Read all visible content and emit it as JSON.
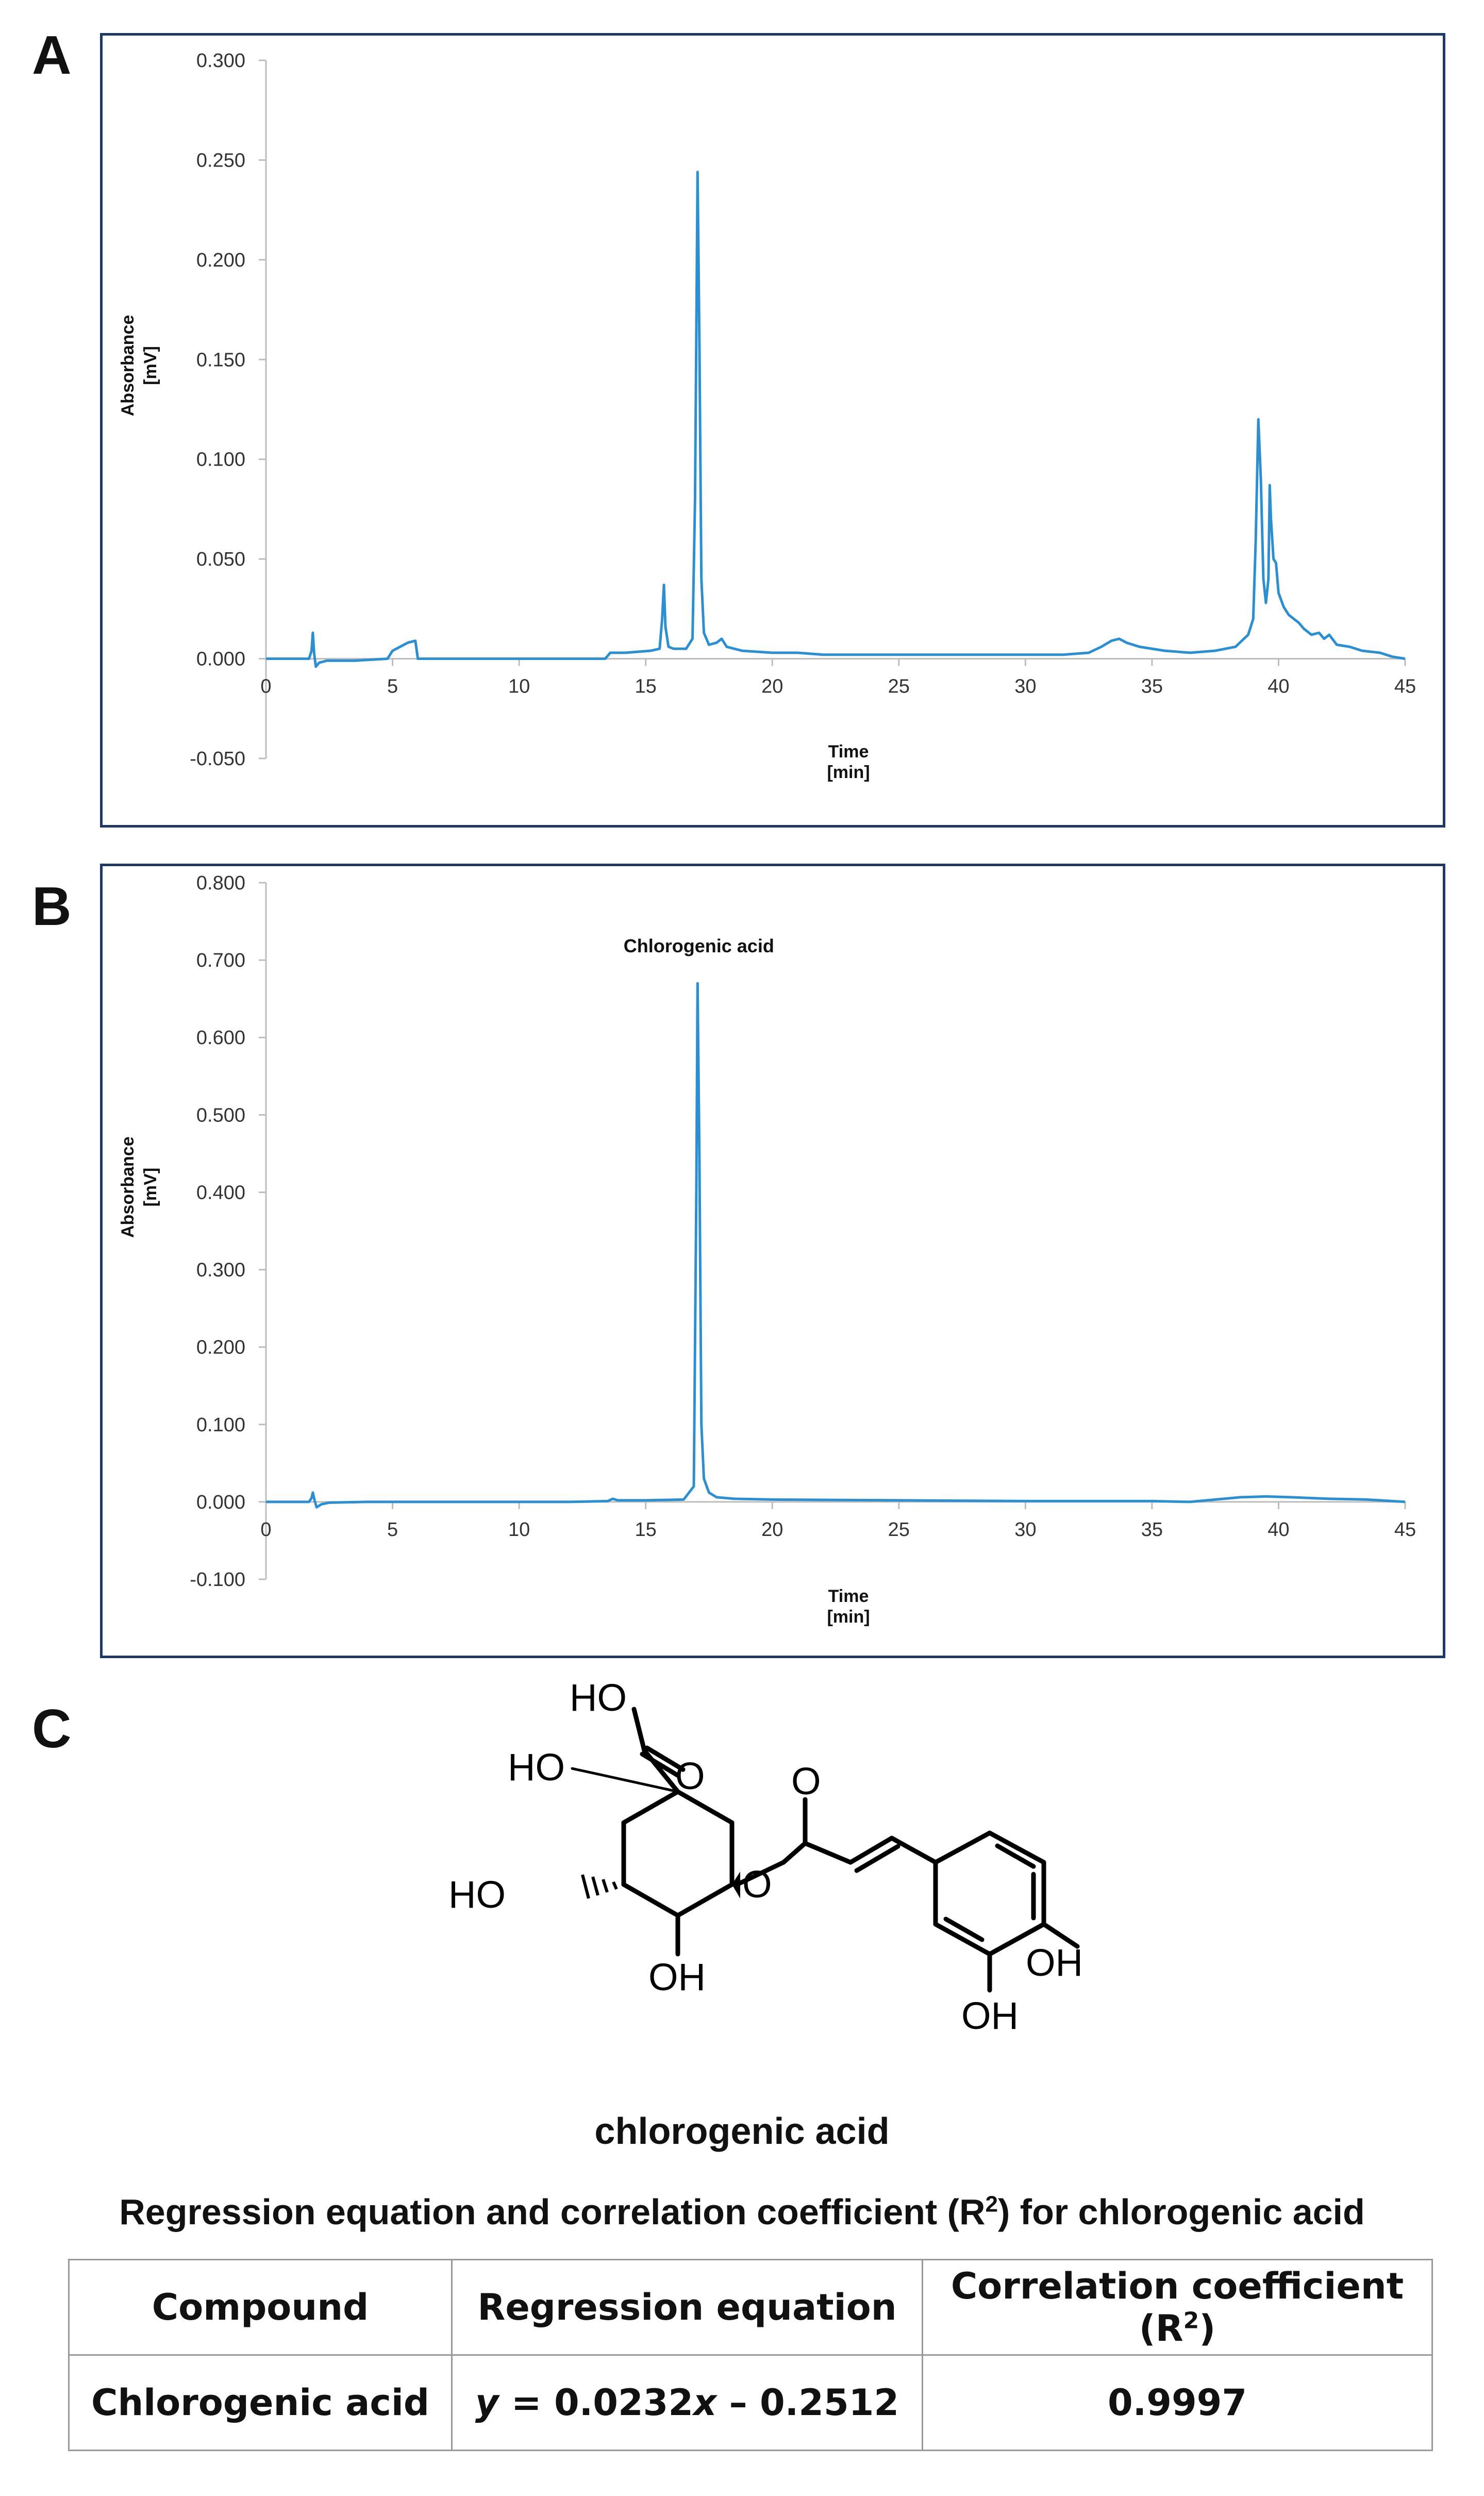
{
  "panels": [
    {
      "letter": "A",
      "chart_data": {
        "type": "line",
        "xlabel": "Time",
        "xunit": "[min]",
        "ylabel": "Absorbance",
        "yunit": "[mV]",
        "xlim": [
          0,
          45
        ],
        "ylim": [
          -0.05,
          0.3
        ],
        "xticks": [
          "0",
          "5",
          "10",
          "15",
          "20",
          "25",
          "30",
          "35",
          "40",
          "45"
        ],
        "yticks": [
          "0.300",
          "0.250",
          "0.200",
          "0.150",
          "0.100",
          "0.050",
          "0.000",
          "-0.050"
        ],
        "grid": false,
        "color": "#2e8fd0",
        "points": [
          [
            0,
            0.0
          ],
          [
            1.7,
            0.0
          ],
          [
            1.8,
            0.004
          ],
          [
            1.85,
            0.013
          ],
          [
            1.9,
            0.003
          ],
          [
            1.97,
            -0.004
          ],
          [
            2.1,
            -0.002
          ],
          [
            2.4,
            -0.001
          ],
          [
            3.5,
            -0.001
          ],
          [
            4.8,
            0.0
          ],
          [
            5.0,
            0.004
          ],
          [
            5.3,
            0.006
          ],
          [
            5.6,
            0.008
          ],
          [
            5.9,
            0.009
          ],
          [
            6.0,
            0.0
          ],
          [
            8,
            0.0
          ],
          [
            10,
            0.0
          ],
          [
            12,
            0.0
          ],
          [
            13.4,
            0.0
          ],
          [
            13.6,
            0.003
          ],
          [
            14.2,
            0.003
          ],
          [
            15.2,
            0.004
          ],
          [
            15.55,
            0.005
          ],
          [
            15.65,
            0.02
          ],
          [
            15.72,
            0.037
          ],
          [
            15.78,
            0.016
          ],
          [
            15.9,
            0.006
          ],
          [
            16.1,
            0.005
          ],
          [
            16.6,
            0.005
          ],
          [
            16.85,
            0.01
          ],
          [
            16.95,
            0.08
          ],
          [
            17.05,
            0.244
          ],
          [
            17.12,
            0.16
          ],
          [
            17.2,
            0.04
          ],
          [
            17.3,
            0.013
          ],
          [
            17.5,
            0.007
          ],
          [
            17.8,
            0.008
          ],
          [
            18.0,
            0.01
          ],
          [
            18.2,
            0.006
          ],
          [
            18.8,
            0.004
          ],
          [
            20,
            0.003
          ],
          [
            21,
            0.003
          ],
          [
            22,
            0.002
          ],
          [
            24,
            0.002
          ],
          [
            26,
            0.002
          ],
          [
            28,
            0.002
          ],
          [
            30,
            0.002
          ],
          [
            31.5,
            0.002
          ],
          [
            32.5,
            0.003
          ],
          [
            33.0,
            0.006
          ],
          [
            33.4,
            0.009
          ],
          [
            33.7,
            0.01
          ],
          [
            34.0,
            0.008
          ],
          [
            34.5,
            0.006
          ],
          [
            35.5,
            0.004
          ],
          [
            36.5,
            0.003
          ],
          [
            37.5,
            0.004
          ],
          [
            38.3,
            0.006
          ],
          [
            38.8,
            0.012
          ],
          [
            39.0,
            0.02
          ],
          [
            39.1,
            0.06
          ],
          [
            39.2,
            0.12
          ],
          [
            39.3,
            0.09
          ],
          [
            39.4,
            0.04
          ],
          [
            39.5,
            0.028
          ],
          [
            39.6,
            0.04
          ],
          [
            39.65,
            0.087
          ],
          [
            39.7,
            0.07
          ],
          [
            39.8,
            0.05
          ],
          [
            39.9,
            0.048
          ],
          [
            40.0,
            0.033
          ],
          [
            40.2,
            0.026
          ],
          [
            40.4,
            0.022
          ],
          [
            40.6,
            0.02
          ],
          [
            40.8,
            0.018
          ],
          [
            41.0,
            0.015
          ],
          [
            41.3,
            0.012
          ],
          [
            41.6,
            0.013
          ],
          [
            41.8,
            0.01
          ],
          [
            42.0,
            0.012
          ],
          [
            42.3,
            0.007
          ],
          [
            42.8,
            0.006
          ],
          [
            43.3,
            0.004
          ],
          [
            44.0,
            0.003
          ],
          [
            44.5,
            0.001
          ],
          [
            45,
            0.0
          ]
        ]
      }
    },
    {
      "letter": "B",
      "chart_data": {
        "type": "line",
        "xlabel": "Time",
        "xunit": "[min]",
        "ylabel": "Absorbance",
        "yunit": "[mV]",
        "xlim": [
          0,
          45
        ],
        "ylim": [
          -0.1,
          0.8
        ],
        "xticks": [
          "0",
          "5",
          "10",
          "15",
          "20",
          "25",
          "30",
          "35",
          "40",
          "45"
        ],
        "yticks": [
          "0.800",
          "0.700",
          "0.600",
          "0.500",
          "0.400",
          "0.300",
          "0.200",
          "0.100",
          "0.000",
          "-0.100"
        ],
        "grid": false,
        "color": "#2e8fd0",
        "annotation": {
          "text": "Chlorogenic acid",
          "x": 17.1,
          "y": 0.71
        },
        "points": [
          [
            0,
            0.0
          ],
          [
            1.7,
            0.0
          ],
          [
            1.8,
            0.005
          ],
          [
            1.85,
            0.012
          ],
          [
            1.92,
            0.002
          ],
          [
            2.0,
            -0.007
          ],
          [
            2.2,
            -0.003
          ],
          [
            2.5,
            -0.001
          ],
          [
            4,
            0.0
          ],
          [
            8,
            0.0
          ],
          [
            12,
            0.0
          ],
          [
            13.5,
            0.001
          ],
          [
            13.7,
            0.004
          ],
          [
            13.9,
            0.002
          ],
          [
            15,
            0.002
          ],
          [
            16.5,
            0.003
          ],
          [
            16.9,
            0.02
          ],
          [
            17.0,
            0.4
          ],
          [
            17.05,
            0.67
          ],
          [
            17.12,
            0.45
          ],
          [
            17.2,
            0.1
          ],
          [
            17.3,
            0.03
          ],
          [
            17.5,
            0.012
          ],
          [
            17.8,
            0.006
          ],
          [
            18.5,
            0.004
          ],
          [
            20,
            0.003
          ],
          [
            25,
            0.002
          ],
          [
            30,
            0.001
          ],
          [
            35,
            0.001
          ],
          [
            36.5,
            0.0
          ],
          [
            37.5,
            0.003
          ],
          [
            38.5,
            0.006
          ],
          [
            39.5,
            0.007
          ],
          [
            40.5,
            0.006
          ],
          [
            42,
            0.004
          ],
          [
            43.5,
            0.003
          ],
          [
            45,
            0.0
          ]
        ]
      }
    }
  ],
  "panel_c_letter": "C",
  "structure": {
    "ho_top": "HO",
    "ho_left": "HO",
    "o_carbonyl_acid": "O",
    "o_ester_carbonyl": "O",
    "o_ester": "O",
    "ho_ring": "HO",
    "oh_bottom": "OH",
    "oh_right": "OH",
    "oh_lower": "OH",
    "name": "chlorogenic acid"
  },
  "table": {
    "title_prefix": "Regression equation and correlation coefficient (R",
    "title_sup": "2",
    "title_suffix": ") for chlorogenic acid",
    "headers": {
      "compound": "Compound",
      "equation": "Regression equation",
      "corr_prefix": "Correlation coefficient (R",
      "corr_sup": "2",
      "corr_suffix": ")"
    },
    "row": {
      "compound": "Chlorogenic acid",
      "eq_y": "y",
      "eq_mid": " = 0.0232",
      "eq_x": "x",
      "eq_end": " – 0.2512",
      "r2": "0.9997"
    }
  }
}
